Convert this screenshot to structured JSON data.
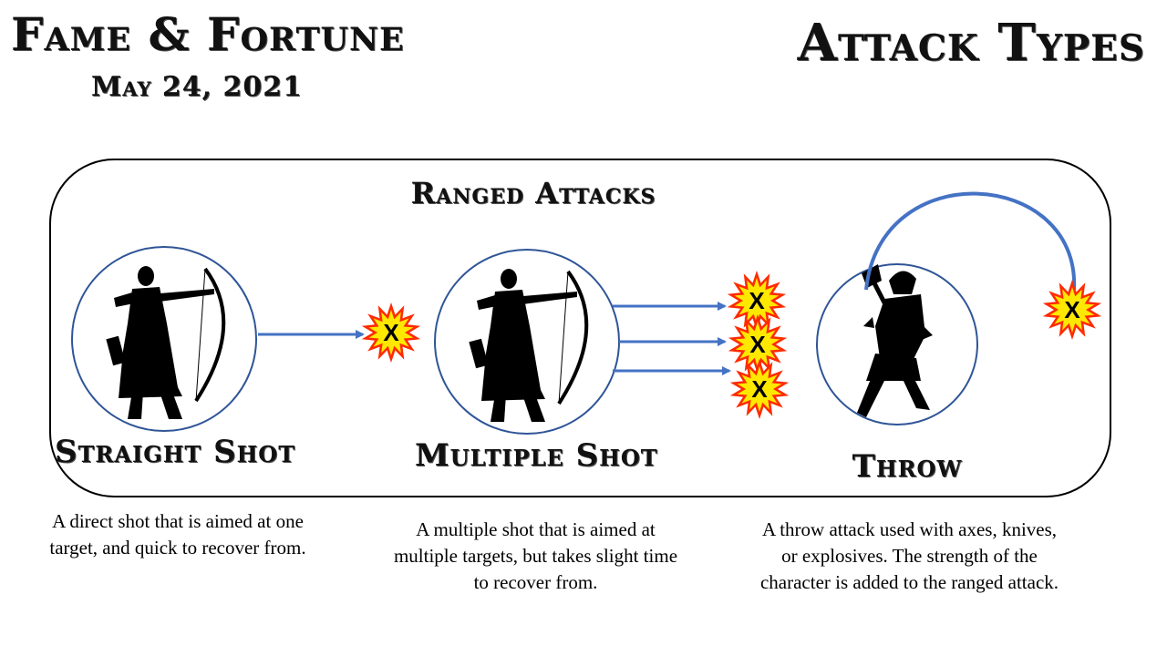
{
  "header": {
    "title": "Fame & Fortune",
    "date": "May 24, 2021",
    "page_title": "Attack Types"
  },
  "section": {
    "title": "Ranged Attacks"
  },
  "attacks": [
    {
      "label": "Straight Shot",
      "description": "A direct shot that is aimed at one target, and quick to recover from.",
      "targets": 1
    },
    {
      "label": "Multiple Shot",
      "description": "A multiple shot that is aimed at multiple targets, but takes slight time to recover from.",
      "targets": 3
    },
    {
      "label": "Throw",
      "description": "A throw attack used with axes, knives, or explosives. The strength of the character is added to the ranged attack.",
      "targets": 1
    }
  ],
  "target_marker": "X",
  "colors": {
    "arrow": "#4472c4",
    "circle_stroke": "#2f5597",
    "panel_stroke": "#000000",
    "burst_outer": "#ff2a00",
    "burst_inner": "#ffe800",
    "silhouette": "#000000"
  },
  "icons": {
    "archer": "archer-silhouette-icon",
    "thrower": "axe-thrower-silhouette-icon",
    "target": "explosion-burst-icon"
  }
}
